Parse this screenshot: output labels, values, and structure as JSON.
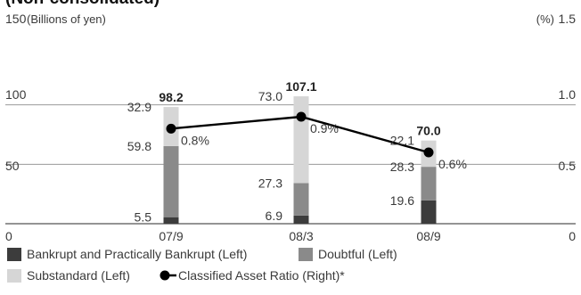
{
  "chart_data": {
    "type": "bar",
    "stacked": true,
    "title": "(Non-consolidated)",
    "left_axis_label": "(Billions of yen)",
    "right_axis_label": "(%)",
    "categories": [
      "07/9",
      "08/3",
      "08/9"
    ],
    "ylim": [
      0,
      150
    ],
    "yticks": [
      "0",
      "50",
      "100",
      "150"
    ],
    "y2lim": [
      0,
      1.5
    ],
    "y2ticks": [
      "0",
      "0.5",
      "1.0",
      "1.5"
    ],
    "series": [
      {
        "name": "Bankrupt and Practically Bankrupt (Left)",
        "values": [
          5.5,
          6.9,
          19.6
        ],
        "labels": [
          "5.5",
          "6.9",
          "19.6"
        ],
        "color": "#3c3c3c"
      },
      {
        "name": "Doubtful (Left)",
        "values": [
          59.8,
          27.3,
          28.3
        ],
        "labels": [
          "59.8",
          "27.3",
          "28.3"
        ],
        "color": "#8a8a8a"
      },
      {
        "name": "Substandard (Left)",
        "values": [
          32.9,
          73.0,
          22.1
        ],
        "labels": [
          "32.9",
          "73.0",
          "22.1"
        ],
        "color": "#d6d6d6"
      }
    ],
    "totals": [
      "98.2",
      "107.1",
      "70.0"
    ],
    "line": {
      "name": "Classified Asset Ratio (Right)*",
      "values": [
        0.8,
        0.9,
        0.6
      ],
      "labels": [
        "0.8%",
        "0.9%",
        "0.6%"
      ],
      "color": "#000000"
    },
    "grid": true,
    "legend": "bottom"
  }
}
